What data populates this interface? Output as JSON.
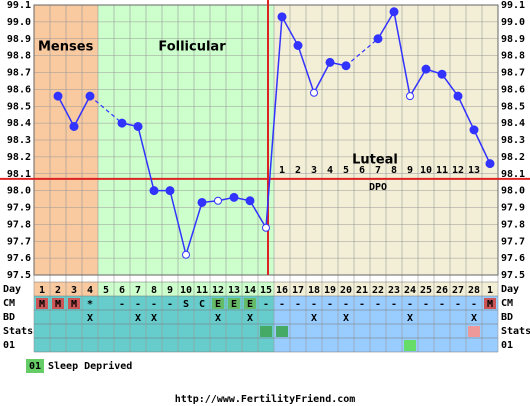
{
  "chart_data": {
    "type": "line",
    "ylim": [
      97.5,
      99.1
    ],
    "yticks": [
      97.5,
      97.6,
      97.7,
      97.8,
      97.9,
      {
        "value": 98,
        "label": "98.0"
      },
      98.1,
      98.2,
      98.3,
      98.4,
      98.5,
      98.6,
      98.7,
      98.8,
      98.9,
      {
        "value": 99,
        "label": "99.0"
      },
      99.1
    ],
    "grid": true,
    "day_label": "Day",
    "categories": [
      "1",
      "2",
      "3",
      "4",
      "5",
      "6",
      "7",
      "8",
      "9",
      "10",
      "11",
      "12",
      "13",
      "14",
      "15",
      "16",
      "17",
      "18",
      "19",
      "20",
      "21",
      "22",
      "23",
      "24",
      "25",
      "26",
      "27",
      "28",
      "1"
    ],
    "phases": [
      {
        "label": "Menses",
        "color": "#f9c9a0",
        "row_color": "#66cccc",
        "start": 0,
        "end": 3
      },
      {
        "label": "Follicular",
        "color": "#ccffcc",
        "row_color": "#66cccc",
        "start": 4,
        "end": 14
      },
      {
        "label": "Luteal",
        "color": "#f3efd6",
        "row_color": "#99ccff",
        "start": 15,
        "end": 28
      }
    ],
    "series": [
      {
        "name": "Temperature",
        "color": "#3333ff",
        "values": [
          null,
          98.56,
          98.38,
          98.56,
          null,
          98.4,
          98.38,
          98.0,
          98.0,
          97.62,
          97.93,
          97.94,
          97.96,
          97.94,
          97.78,
          99.03,
          98.86,
          98.58,
          98.76,
          98.74,
          null,
          98.9,
          99.06,
          98.56,
          98.72,
          98.69,
          98.56,
          98.36,
          98.16
        ],
        "open_points": [
          9,
          11,
          14,
          17,
          23
        ]
      }
    ],
    "coverline": 98.07,
    "coverline_color": "#dd2222",
    "dpo_label": "DPO",
    "dpo": [
      null,
      null,
      null,
      null,
      null,
      null,
      null,
      null,
      null,
      null,
      null,
      null,
      null,
      null,
      null,
      1,
      2,
      3,
      4,
      5,
      6,
      7,
      8,
      9,
      10,
      11,
      12,
      13,
      null
    ],
    "rows": [
      {
        "label": "CM",
        "cells": [
          "M",
          "M",
          "M",
          "*",
          null,
          "-",
          "-",
          "-",
          "-",
          "S",
          "C",
          "E",
          "E",
          "E",
          "-",
          "-",
          "-",
          "-",
          "-",
          "-",
          "-",
          "-",
          "-",
          "-",
          "-",
          "-",
          "-",
          "-",
          "M"
        ],
        "cell_colors": [
          "#cc5555",
          "#cc5555",
          "#cc5555",
          null,
          null,
          null,
          null,
          null,
          null,
          null,
          null,
          "#66bb66",
          "#66bb66",
          "#66bb66",
          null,
          null,
          null,
          null,
          null,
          null,
          null,
          null,
          null,
          null,
          null,
          null,
          null,
          null,
          "#cc5555"
        ]
      },
      {
        "label": "BD",
        "cells": [
          null,
          null,
          null,
          "X",
          null,
          null,
          "X",
          "X",
          null,
          null,
          null,
          "X",
          null,
          "X",
          null,
          null,
          null,
          "X",
          null,
          "X",
          null,
          null,
          null,
          "X",
          null,
          null,
          null,
          "X",
          null
        ],
        "cell_colors": [
          null,
          null,
          null,
          null,
          null,
          null,
          null,
          null,
          null,
          null,
          null,
          null,
          null,
          null,
          null,
          null,
          null,
          null,
          null,
          null,
          null,
          null,
          null,
          null,
          null,
          null,
          null,
          null,
          null
        ]
      },
      {
        "label": "Stats",
        "cells": [
          null,
          null,
          null,
          null,
          null,
          null,
          null,
          null,
          null,
          null,
          null,
          null,
          null,
          null,
          null,
          null,
          null,
          null,
          null,
          null,
          null,
          null,
          null,
          null,
          null,
          null,
          null,
          null,
          null
        ],
        "cell_colors": [
          null,
          null,
          null,
          null,
          null,
          null,
          null,
          null,
          null,
          null,
          null,
          null,
          null,
          null,
          "#44aa66",
          "#44aa66",
          null,
          null,
          null,
          null,
          null,
          null,
          null,
          null,
          null,
          null,
          null,
          "#ee9999",
          null
        ]
      },
      {
        "label": "01",
        "cells": [
          null,
          null,
          null,
          null,
          null,
          null,
          null,
          null,
          null,
          null,
          null,
          null,
          null,
          null,
          null,
          null,
          null,
          null,
          null,
          null,
          null,
          null,
          null,
          null,
          null,
          null,
          null,
          null,
          null
        ],
        "cell_colors": [
          null,
          null,
          null,
          null,
          null,
          null,
          null,
          null,
          null,
          null,
          null,
          null,
          null,
          null,
          null,
          null,
          null,
          null,
          null,
          null,
          null,
          null,
          null,
          "#66dd66",
          null,
          null,
          null,
          null,
          null
        ]
      }
    ],
    "legend": {
      "code": "01",
      "label": "Sleep Deprived",
      "color": "#66cc66"
    },
    "footer": "http://www.FertilityFriend.com"
  }
}
